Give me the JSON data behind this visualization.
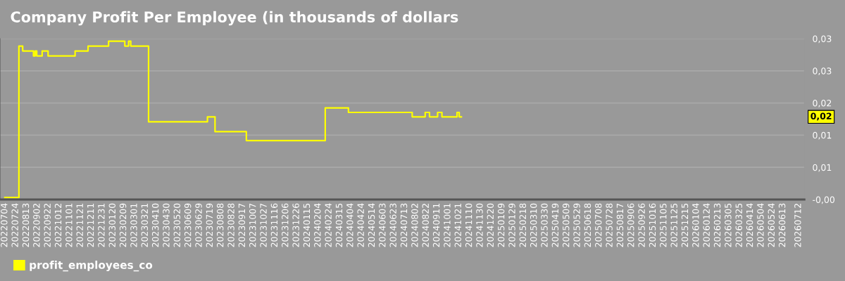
{
  "chart_data": {
    "type": "step",
    "title": "Company Profit Per Employee (in thousands of dollars",
    "x": [
      "2022-07-04",
      "2022-07-30",
      "2022-08-06",
      "2022-08-26",
      "2022-08-29",
      "2022-09-01",
      "2022-09-11",
      "2022-09-22",
      "2022-11-11",
      "2022-12-05",
      "2023-01-12",
      "2023-02-11",
      "2023-02-18",
      "2023-02-22",
      "2023-03-27",
      "2023-07-14",
      "2023-07-28",
      "2023-09-24",
      "2024-02-17",
      "2024-03-31",
      "2024-07-27",
      "2024-08-20",
      "2024-08-28",
      "2024-09-12",
      "2024-09-20",
      "2024-10-18",
      "2024-10-22",
      "2024-10-26"
    ],
    "series": [
      {
        "name": "profit_employees_co",
        "color": "#ffff00",
        "values": [
          0.0001,
          0.0307,
          0.0297,
          0.0287,
          0.0297,
          0.0287,
          0.0297,
          0.0287,
          0.0297,
          0.0307,
          0.0317,
          0.0307,
          0.0317,
          0.0307,
          0.0154,
          0.0164,
          0.0134,
          0.0116,
          0.0182,
          0.0173,
          0.0164,
          0.0173,
          0.0164,
          0.0173,
          0.0164,
          0.0173,
          0.0164,
          0.0164
        ]
      }
    ],
    "xlim": [
      "2022-06-25",
      "2026-07-23"
    ],
    "ylim": [
      -0.0003,
      0.0322
    ],
    "yticks": [
      {
        "value": -0.0003,
        "label": "-0,00"
      },
      {
        "value": 0.0062,
        "label": "0,01"
      },
      {
        "value": 0.0127,
        "label": "0,01"
      },
      {
        "value": 0.0192,
        "label": "0,02"
      },
      {
        "value": 0.0257,
        "label": "0,03"
      },
      {
        "value": 0.0322,
        "label": "0,03"
      }
    ],
    "xticks": [
      {
        "value": "2022-07-04",
        "label": "20220704"
      },
      {
        "value": "2022-07-24",
        "label": "20220724"
      },
      {
        "value": "2022-08-13",
        "label": "20220813"
      },
      {
        "value": "2022-09-02",
        "label": "20220902"
      },
      {
        "value": "2022-09-22",
        "label": "20220922"
      },
      {
        "value": "2022-10-12",
        "label": "20221012"
      },
      {
        "value": "2022-11-01",
        "label": "20221101"
      },
      {
        "value": "2022-11-21",
        "label": "20221121"
      },
      {
        "value": "2022-12-11",
        "label": "20221211"
      },
      {
        "value": "2022-12-31",
        "label": "20221231"
      },
      {
        "value": "2023-01-20",
        "label": "20230120"
      },
      {
        "value": "2023-02-09",
        "label": "20230209"
      },
      {
        "value": "2023-03-01",
        "label": "20230301"
      },
      {
        "value": "2023-03-21",
        "label": "20230321"
      },
      {
        "value": "2023-04-10",
        "label": "20230410"
      },
      {
        "value": "2023-04-30",
        "label": "20230430"
      },
      {
        "value": "2023-05-20",
        "label": "20230520"
      },
      {
        "value": "2023-06-09",
        "label": "20230609"
      },
      {
        "value": "2023-06-29",
        "label": "20230629"
      },
      {
        "value": "2023-07-19",
        "label": "20230719"
      },
      {
        "value": "2023-08-08",
        "label": "20230808"
      },
      {
        "value": "2023-08-28",
        "label": "20230828"
      },
      {
        "value": "2023-09-17",
        "label": "20230917"
      },
      {
        "value": "2023-10-07",
        "label": "20231007"
      },
      {
        "value": "2023-10-27",
        "label": "20231027"
      },
      {
        "value": "2023-11-16",
        "label": "20231116"
      },
      {
        "value": "2023-12-06",
        "label": "20231206"
      },
      {
        "value": "2023-12-26",
        "label": "20231226"
      },
      {
        "value": "2024-01-15",
        "label": "20240115"
      },
      {
        "value": "2024-02-04",
        "label": "20240204"
      },
      {
        "value": "2024-02-24",
        "label": "20240224"
      },
      {
        "value": "2024-03-15",
        "label": "20240315"
      },
      {
        "value": "2024-04-04",
        "label": "20240404"
      },
      {
        "value": "2024-04-24",
        "label": "20240424"
      },
      {
        "value": "2024-05-14",
        "label": "20240514"
      },
      {
        "value": "2024-06-03",
        "label": "20240603"
      },
      {
        "value": "2024-06-23",
        "label": "20240623"
      },
      {
        "value": "2024-07-13",
        "label": "20240713"
      },
      {
        "value": "2024-08-02",
        "label": "20240802"
      },
      {
        "value": "2024-08-22",
        "label": "20240822"
      },
      {
        "value": "2024-09-11",
        "label": "20240911"
      },
      {
        "value": "2024-10-01",
        "label": "20241001"
      },
      {
        "value": "2024-10-21",
        "label": "20241021"
      },
      {
        "value": "2024-11-10",
        "label": "20241110"
      },
      {
        "value": "2024-11-30",
        "label": "20241130"
      },
      {
        "value": "2024-12-20",
        "label": "20241220"
      },
      {
        "value": "2025-01-09",
        "label": "20250109"
      },
      {
        "value": "2025-01-29",
        "label": "20250129"
      },
      {
        "value": "2025-02-18",
        "label": "20250218"
      },
      {
        "value": "2025-03-10",
        "label": "20250310"
      },
      {
        "value": "2025-03-30",
        "label": "20250330"
      },
      {
        "value": "2025-04-19",
        "label": "20250419"
      },
      {
        "value": "2025-05-09",
        "label": "20250509"
      },
      {
        "value": "2025-05-29",
        "label": "20250529"
      },
      {
        "value": "2025-06-18",
        "label": "20250618"
      },
      {
        "value": "2025-07-08",
        "label": "20250708"
      },
      {
        "value": "2025-07-28",
        "label": "20250728"
      },
      {
        "value": "2025-08-17",
        "label": "20250817"
      },
      {
        "value": "2025-09-06",
        "label": "20250906"
      },
      {
        "value": "2025-09-26",
        "label": "20250926"
      },
      {
        "value": "2025-10-16",
        "label": "20251016"
      },
      {
        "value": "2025-11-05",
        "label": "20251105"
      },
      {
        "value": "2025-11-25",
        "label": "20251125"
      },
      {
        "value": "2025-12-15",
        "label": "20251215"
      },
      {
        "value": "2026-01-04",
        "label": "20260104"
      },
      {
        "value": "2026-01-24",
        "label": "20260124"
      },
      {
        "value": "2026-02-13",
        "label": "20260213"
      },
      {
        "value": "2026-03-05",
        "label": "20260305"
      },
      {
        "value": "2026-03-25",
        "label": "20260325"
      },
      {
        "value": "2026-04-14",
        "label": "20260414"
      },
      {
        "value": "2026-05-04",
        "label": "20260504"
      },
      {
        "value": "2026-05-24",
        "label": "20260524"
      },
      {
        "value": "2026-06-13",
        "label": "20260613"
      },
      {
        "value": "2026-07-12",
        "label": "20260712"
      }
    ],
    "annotations": [
      "0,02"
    ],
    "grid": "y",
    "legend": "bottom left",
    "line_style": "solid",
    "marker": "none"
  }
}
